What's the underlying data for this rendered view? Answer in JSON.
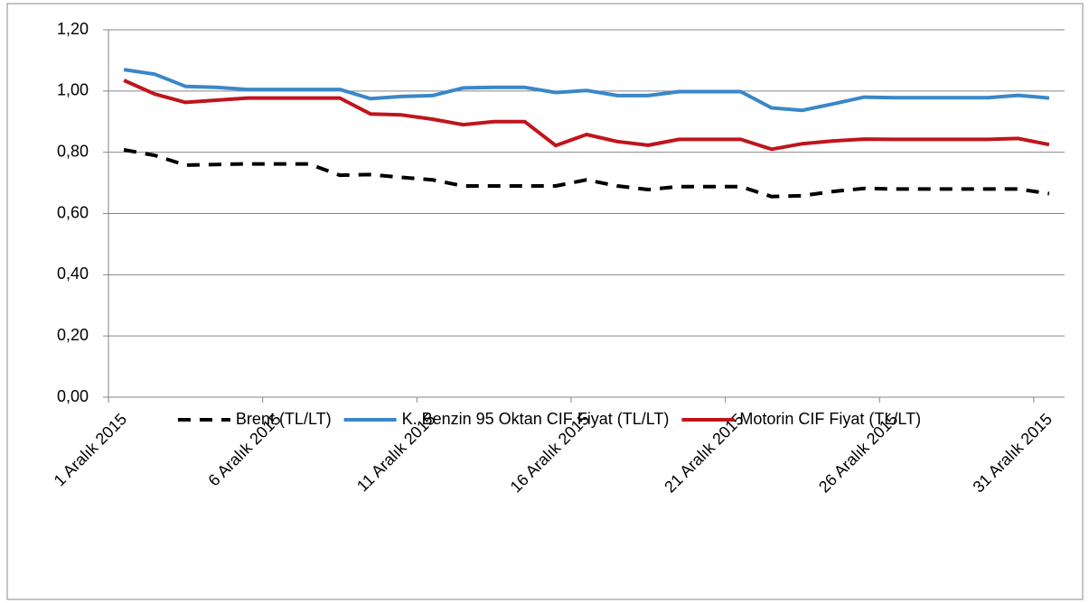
{
  "chart_data": {
    "type": "line",
    "categories": [
      "1 Aralık 2015",
      null,
      null,
      null,
      null,
      "6 Aralık 2015",
      null,
      null,
      null,
      null,
      "11 Aralık 2015",
      null,
      null,
      null,
      null,
      "16 Aralık 2015",
      null,
      null,
      null,
      null,
      "21 Aralık 2015",
      null,
      null,
      null,
      null,
      "26 Aralık 2015",
      null,
      null,
      null,
      null,
      "31 Aralık 2015"
    ],
    "series": [
      {
        "name": "Brent  (TL/LT)",
        "color": "#000000",
        "style": "dashed",
        "values": [
          0.808,
          0.79,
          0.758,
          0.76,
          0.762,
          0.762,
          0.762,
          0.725,
          0.727,
          0.718,
          0.71,
          0.69,
          0.69,
          0.69,
          0.69,
          0.71,
          0.69,
          0.678,
          0.688,
          0.688,
          0.688,
          0.655,
          0.658,
          0.672,
          0.682,
          0.68,
          0.68,
          0.68,
          0.68,
          0.68,
          0.665
        ]
      },
      {
        "name": "K. Benzin 95 Oktan CIF Fiyat (TL/LT)",
        "color": "#3a87c8",
        "style": "solid",
        "values": [
          1.07,
          1.055,
          1.015,
          1.012,
          1.005,
          1.005,
          1.005,
          1.005,
          0.975,
          0.982,
          0.985,
          1.01,
          1.012,
          1.012,
          0.995,
          1.002,
          0.985,
          0.985,
          0.998,
          0.998,
          0.998,
          0.945,
          0.937,
          0.958,
          0.98,
          0.978,
          0.978,
          0.978,
          0.978,
          0.986,
          0.977
        ]
      },
      {
        "name": "Motorin CIF Fiyat (TL/LT)",
        "color": "#c0141c",
        "style": "solid",
        "values": [
          1.035,
          0.99,
          0.963,
          0.97,
          0.977,
          0.977,
          0.977,
          0.977,
          0.925,
          0.922,
          0.908,
          0.89,
          0.9,
          0.9,
          0.822,
          0.858,
          0.835,
          0.823,
          0.842,
          0.842,
          0.842,
          0.81,
          0.828,
          0.837,
          0.843,
          0.842,
          0.842,
          0.842,
          0.842,
          0.845,
          0.825
        ]
      }
    ],
    "ylim": [
      0,
      1.2
    ],
    "yticks": [
      {
        "value": 0,
        "label": "0,00"
      },
      {
        "value": 0.2,
        "label": "0,20"
      },
      {
        "value": 0.4,
        "label": "0,40"
      },
      {
        "value": 0.6,
        "label": "0,60"
      },
      {
        "value": 0.8,
        "label": "0,80"
      },
      {
        "value": 1.0,
        "label": "1,00"
      },
      {
        "value": 1.2,
        "label": "1,20"
      }
    ],
    "grid": true,
    "legend": "bottom"
  }
}
